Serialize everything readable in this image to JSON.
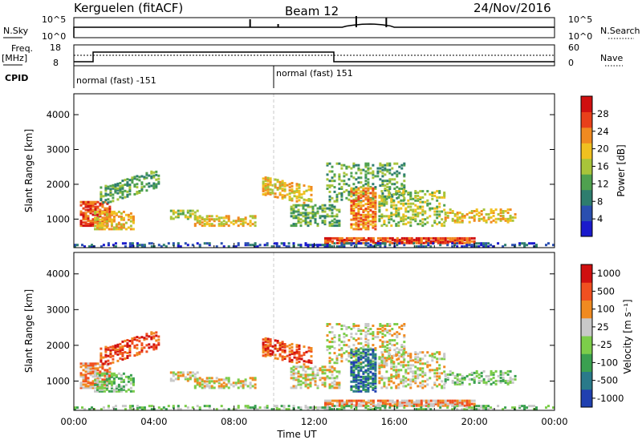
{
  "header": {
    "station": "Kerguelen (fitACF)",
    "beam": "Beam 12",
    "date": "24/Nov/2016"
  },
  "panels": {
    "nsky": {
      "label": "N.Sky",
      "ticks": [
        "10^5",
        "10^0"
      ],
      "right_label": "N.Search",
      "right_ticks": [
        "10^5",
        "10^0"
      ]
    },
    "freq": {
      "label_line1": "Freq.",
      "label_line2": "[MHz]",
      "ticks": [
        "18",
        "8"
      ],
      "right_label": "Nave",
      "right_ticks": [
        "60",
        "0"
      ]
    },
    "cpid": {
      "label": "CPID",
      "mode_left": "normal (fast) -151",
      "mode_right": "normal (fast) 151"
    }
  },
  "chart_data": [
    {
      "type": "heatmap",
      "name": "power",
      "xlabel": "",
      "ylabel": "Slant Range [km]",
      "xlim": [
        "00:00",
        "24:00"
      ],
      "ylim": [
        180,
        4600
      ],
      "yticks": [
        1000,
        2000,
        3000,
        4000
      ],
      "colorbar": {
        "label": "Power [dB]",
        "ticks": [
          "4",
          "8",
          "12",
          "16",
          "20",
          "24",
          "28"
        ],
        "range": [
          0,
          30
        ]
      }
    },
    {
      "type": "heatmap",
      "name": "velocity",
      "xlabel": "Time UT",
      "ylabel": "Slant Range [km]",
      "xlim": [
        "00:00",
        "24:00"
      ],
      "ylim": [
        180,
        4600
      ],
      "yticks": [
        1000,
        2000,
        3000,
        4000
      ],
      "xticks": [
        "00:00",
        "04:00",
        "08:00",
        "12:00",
        "16:00",
        "20:00",
        "00:00"
      ],
      "colorbar": {
        "label": "Velocity [m s⁻¹]",
        "ticks": [
          "1000",
          "500",
          "100",
          "25",
          "-25",
          "-100",
          "-500",
          "-1000"
        ]
      }
    }
  ],
  "colors": {
    "power_scale": [
      "#1a1acc",
      "#2a4fb0",
      "#2e7d6e",
      "#4fa14f",
      "#a8c43a",
      "#f0c020",
      "#f08a20",
      "#e8401a",
      "#d01010"
    ],
    "velocity_scale": [
      "#d01010",
      "#f05020",
      "#f08a20",
      "#c8c8c8",
      "#7ccd4a",
      "#3aa050",
      "#2a7a8a",
      "#2040b0"
    ]
  }
}
